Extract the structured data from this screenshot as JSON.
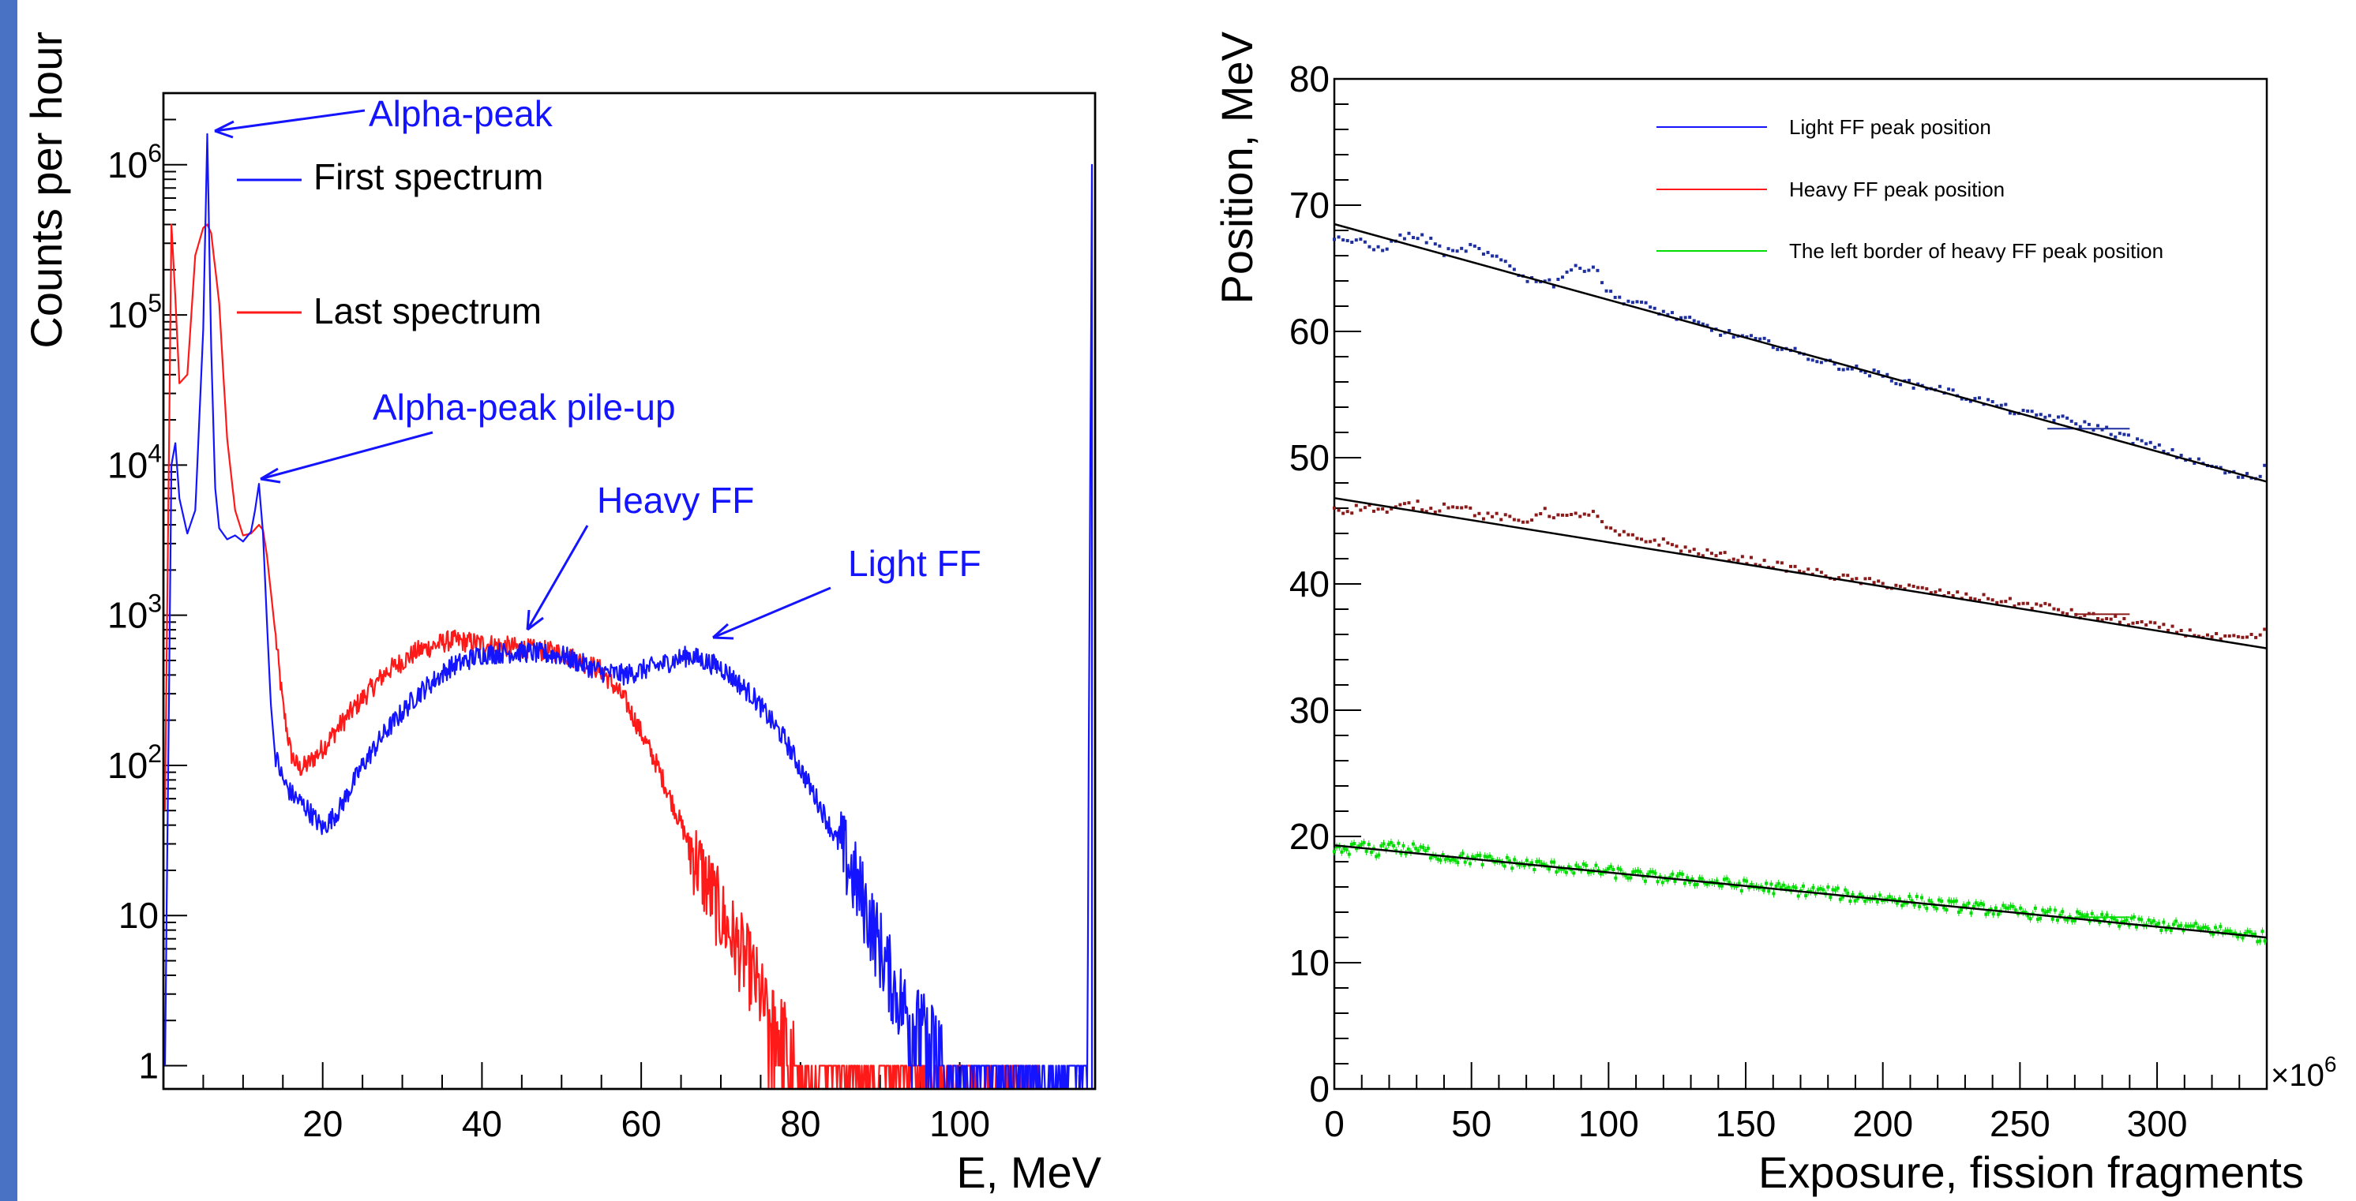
{
  "colors": {
    "frame_bar": "#4a72c4",
    "blue": "#1414ff",
    "red": "#ff1a1a",
    "green": "#00dd00",
    "navy": "#1e2fa0",
    "maroon": "#8b1a1a",
    "black": "#000000"
  },
  "chart_data": [
    {
      "type": "line",
      "xlabel": "E, MeV",
      "ylabel": "Counts per hour",
      "yscale": "log",
      "xlim": [
        0,
        117
      ],
      "ylim": [
        0.7,
        3000000
      ],
      "x_ticks": [
        "20",
        "40",
        "60",
        "80",
        "100"
      ],
      "y_ticks": [
        {
          "base": "1",
          "exp": ""
        },
        {
          "base": "10",
          "exp": ""
        },
        {
          "base": "10",
          "exp": "2"
        },
        {
          "base": "10",
          "exp": "3"
        },
        {
          "base": "10",
          "exp": "4"
        },
        {
          "base": "10",
          "exp": "5"
        },
        {
          "base": "10",
          "exp": "6"
        }
      ],
      "legend": [
        "First spectrum",
        "Last spectrum"
      ],
      "annotations": [
        "Alpha-peak",
        "Alpha-peak pile-up",
        "Heavy FF",
        "Light FF"
      ],
      "series": [
        {
          "name": "First spectrum",
          "color": "#1414ff",
          "x": [
            0.2,
            1,
            1.5,
            2,
            3,
            4,
            5,
            5.5,
            6,
            6.5,
            7,
            8,
            9,
            10,
            11,
            11.5,
            12,
            12.5,
            13,
            13.5,
            14,
            15,
            16,
            18,
            20,
            22,
            25,
            28,
            32,
            36,
            40,
            45,
            50,
            55,
            58,
            62,
            66,
            70,
            74,
            78,
            82,
            86,
            88,
            90,
            92,
            94,
            96,
            100,
            105,
            110,
            116,
            116.6,
            117
          ],
          "y": [
            1,
            10000,
            14000,
            6000,
            3500,
            5000,
            80000,
            1600000,
            60000,
            7000,
            3800,
            3200,
            3400,
            3100,
            3600,
            5000,
            7500,
            3500,
            900,
            250,
            120,
            80,
            65,
            52,
            38,
            50,
            100,
            170,
            300,
            450,
            550,
            570,
            540,
            420,
            400,
            460,
            540,
            450,
            290,
            150,
            60,
            22,
            12,
            6,
            3,
            2,
            1.5,
            1,
            1,
            1,
            1,
            1000000,
            1000000
          ]
        },
        {
          "name": "Last spectrum",
          "color": "#ff1a1a",
          "x": [
            0.2,
            1,
            1.5,
            2,
            3,
            4,
            5,
            5.5,
            6,
            7,
            8,
            9,
            10,
            11,
            12,
            12.5,
            13,
            14,
            15,
            16,
            17,
            18,
            20,
            22,
            25,
            28,
            32,
            36,
            40,
            45,
            50,
            55,
            58,
            62,
            66,
            70,
            74,
            76,
            78,
            80,
            81,
            84,
            90,
            100,
            110
          ],
          "y": [
            50,
            400000,
            130000,
            35000,
            40000,
            250000,
            380000,
            400000,
            350000,
            120000,
            15000,
            5000,
            3400,
            3500,
            4000,
            3700,
            2500,
            800,
            250,
            120,
            95,
            100,
            130,
            180,
            280,
            420,
            580,
            680,
            650,
            600,
            560,
            430,
            270,
            100,
            30,
            10,
            4,
            2,
            1.5,
            1,
            1,
            1,
            1,
            1,
            1
          ]
        }
      ]
    },
    {
      "type": "scatter",
      "xlabel": "Exposure, fission fragments",
      "ylabel": "Position, MeV",
      "x_multiplier": "×10",
      "x_multiplier_exp": "6",
      "xlim": [
        0,
        340
      ],
      "ylim": [
        0,
        80
      ],
      "x_ticks": [
        "0",
        "50",
        "100",
        "150",
        "200",
        "250",
        "300"
      ],
      "y_ticks": [
        "0",
        "10",
        "20",
        "30",
        "40",
        "50",
        "60",
        "70",
        "80"
      ],
      "legend_position": "top-right",
      "series": [
        {
          "name": "Light FF peak position",
          "legend_color": "#1414ff",
          "point_color": "#1e2fa0",
          "fit": [
            68.5,
            -0.06
          ],
          "points_x": [
            0,
            5,
            10,
            15,
            20,
            25,
            30,
            35,
            40,
            45,
            50,
            55,
            60,
            65,
            70,
            75,
            80,
            85,
            90,
            95,
            100,
            105,
            110,
            120,
            130,
            140,
            150,
            160,
            170,
            180,
            190,
            200,
            210,
            220,
            230,
            240,
            250,
            260,
            270,
            280,
            290,
            300,
            310,
            320,
            330,
            338,
            340
          ],
          "points_y": [
            67.5,
            67.2,
            67.0,
            66.5,
            66.8,
            67.6,
            67.5,
            67.2,
            66.3,
            66.2,
            66.8,
            66.0,
            65.8,
            65.2,
            64.0,
            64.2,
            63.8,
            64.8,
            65.0,
            65.2,
            63.0,
            62.5,
            62.3,
            61.5,
            60.8,
            60.0,
            59.5,
            59.0,
            58.2,
            57.5,
            57.0,
            56.5,
            55.8,
            55.5,
            54.8,
            54.3,
            53.5,
            53.3,
            52.8,
            52.3,
            51.5,
            50.8,
            50.0,
            49.3,
            48.5,
            48.5,
            50.2
          ],
          "flat_segment": {
            "x": [
              260,
              290
            ],
            "y": 52.3
          }
        },
        {
          "name": "Heavy FF peak position",
          "legend_color": "#ff1a1a",
          "point_color": "#8b1a1a",
          "fit": [
            46.8,
            -0.035
          ],
          "points_x": [
            0,
            5,
            10,
            15,
            20,
            25,
            30,
            35,
            40,
            45,
            50,
            55,
            60,
            65,
            70,
            75,
            80,
            85,
            90,
            95,
            100,
            110,
            120,
            130,
            140,
            150,
            160,
            170,
            180,
            190,
            200,
            210,
            220,
            230,
            240,
            250,
            260,
            270,
            280,
            290,
            300,
            310,
            320,
            330,
            338,
            340
          ],
          "points_y": [
            46.0,
            45.8,
            46.1,
            46.0,
            45.7,
            46.2,
            46.3,
            45.8,
            46.2,
            46.3,
            45.8,
            45.3,
            45.4,
            45.0,
            44.9,
            45.8,
            45.5,
            45.2,
            45.6,
            45.5,
            44.2,
            43.6,
            43.3,
            42.6,
            42.3,
            41.9,
            41.5,
            41.1,
            40.7,
            40.3,
            40.0,
            39.7,
            39.3,
            39.0,
            38.8,
            38.4,
            38.2,
            37.6,
            37.3,
            37.0,
            36.6,
            36.2,
            35.8,
            35.6,
            35.8,
            37.0
          ],
          "flat_segment": {
            "x": [
              270,
              290
            ],
            "y": 37.6
          }
        },
        {
          "name": "The left border of heavy FF peak position",
          "legend_color": "#00dd00",
          "point_color": "#00dd00",
          "fit": [
            19.3,
            -0.0215
          ],
          "points_x": [
            0,
            5,
            10,
            15,
            20,
            25,
            30,
            40,
            50,
            60,
            70,
            80,
            90,
            100,
            110,
            120,
            130,
            140,
            150,
            160,
            170,
            180,
            190,
            200,
            210,
            220,
            230,
            240,
            250,
            260,
            270,
            280,
            290,
            300,
            310,
            320,
            330,
            340
          ],
          "points_y": [
            18.8,
            19.0,
            19.2,
            18.7,
            19.5,
            18.9,
            19.0,
            18.4,
            18.2,
            18.0,
            17.8,
            17.6,
            17.4,
            17.2,
            16.9,
            16.7,
            16.6,
            16.3,
            16.1,
            15.9,
            15.7,
            15.6,
            15.2,
            15.1,
            14.9,
            14.6,
            14.4,
            14.2,
            14.0,
            13.8,
            13.6,
            13.4,
            13.2,
            13.0,
            12.8,
            12.6,
            12.3,
            12.0
          ],
          "flat_segment": {
            "x": [
              270,
              290
            ],
            "y": 13.6
          }
        }
      ]
    }
  ]
}
